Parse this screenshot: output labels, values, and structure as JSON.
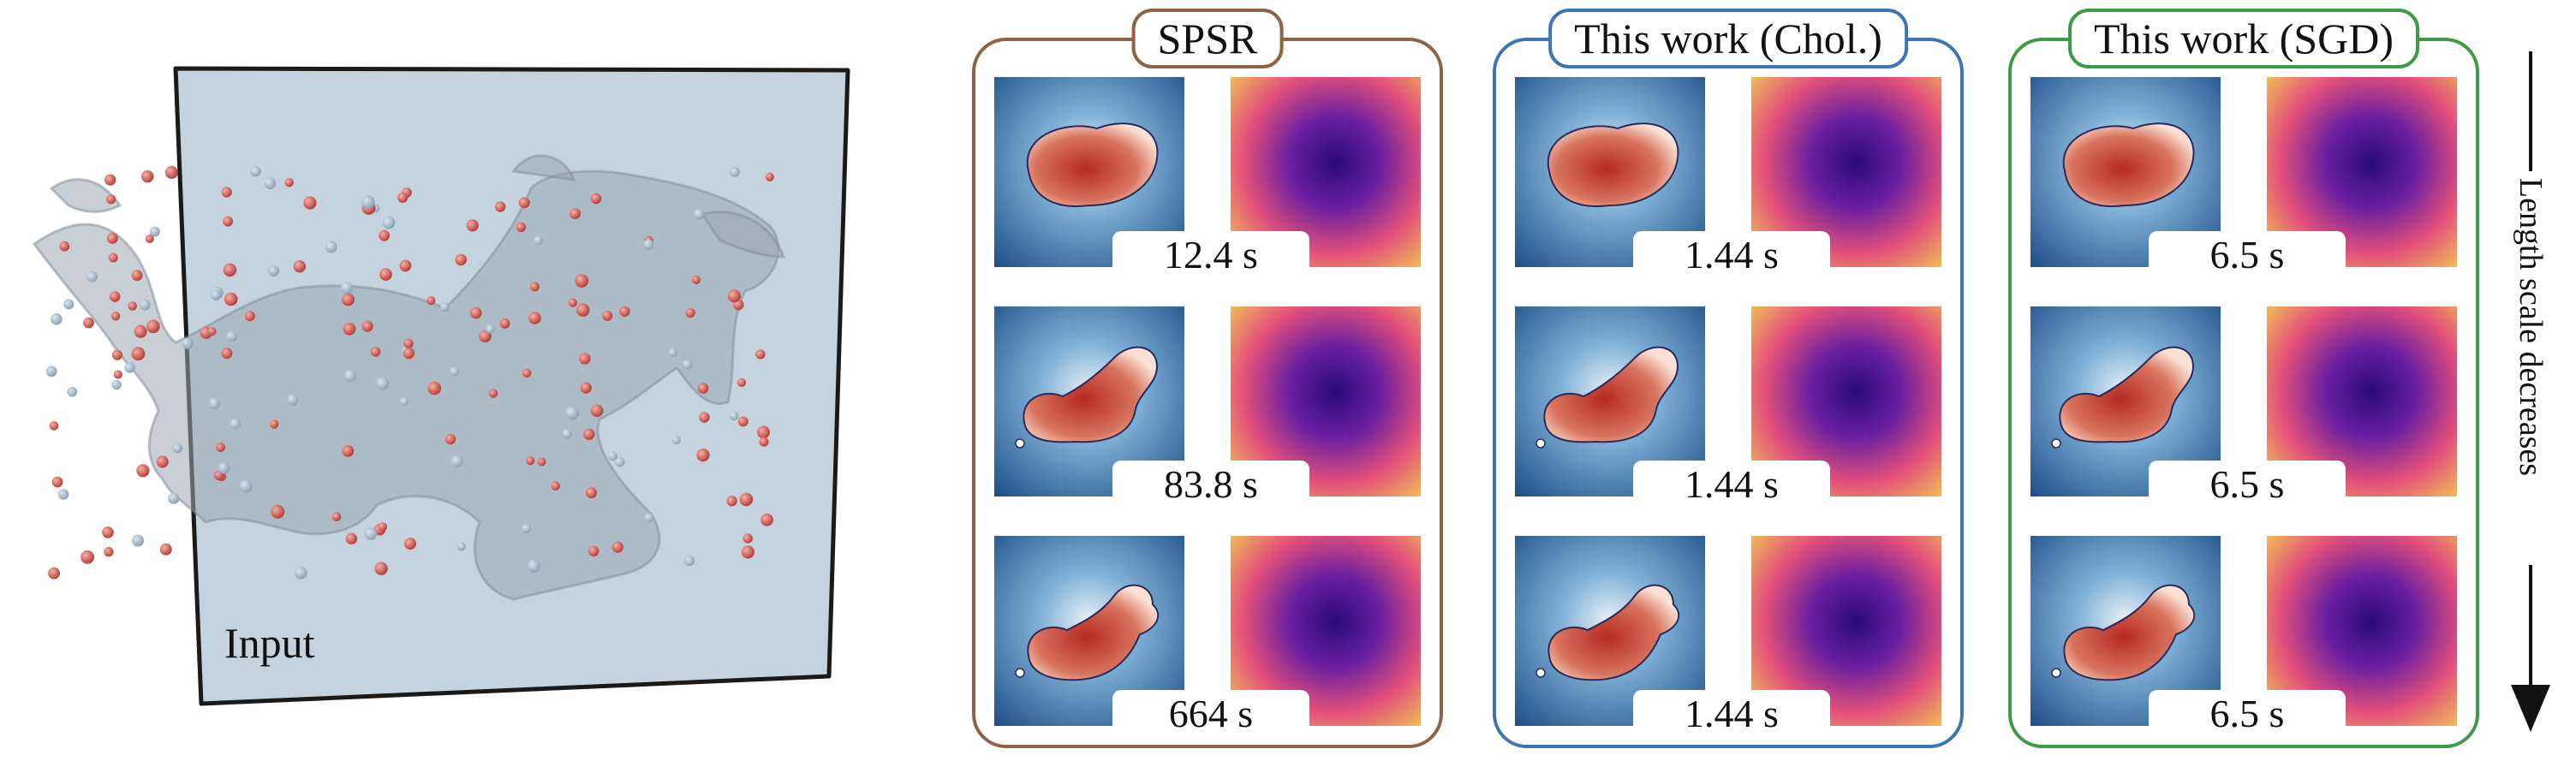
{
  "input_label": "Input",
  "colors": {
    "spsr_border": "#8e6343",
    "chol_border": "#3d74b6",
    "sgd_border": "#3f9a47",
    "field_low": "#1e4b86",
    "field_high": "#b52a22",
    "err_low": "#2a0a78",
    "err_high": "#f6e54a",
    "point_red": "#d85a52"
  },
  "methods": [
    {
      "title": "SPSR",
      "times": [
        "12.4 s",
        "83.8 s",
        "664 s"
      ]
    },
    {
      "title": "This work (Chol.)",
      "times": [
        "1.44 s",
        "1.44 s",
        "1.44 s"
      ]
    },
    {
      "title": "This work (SGD)",
      "times": [
        "6.5  s",
        "6.5  s",
        "6.5  s"
      ]
    }
  ],
  "axis_label": "Length scale decreases"
}
